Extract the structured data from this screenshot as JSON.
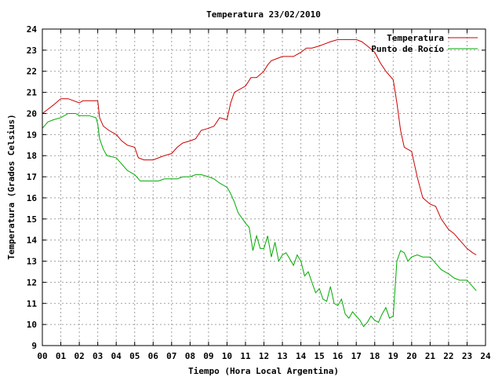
{
  "chart_data": {
    "type": "line",
    "title": "Temperatura 23/02/2010",
    "xlabel": "Tiempo (Hora Local Argentina)",
    "ylabel": "Temperatura (Grados Celsius)",
    "xlim": [
      0,
      24
    ],
    "ylim": [
      9,
      24
    ],
    "grid": true,
    "legend_position": "top-right",
    "x_ticks": [
      "00",
      "01",
      "02",
      "03",
      "04",
      "05",
      "06",
      "07",
      "08",
      "09",
      "10",
      "11",
      "12",
      "13",
      "14",
      "15",
      "16",
      "17",
      "18",
      "19",
      "20",
      "21",
      "22",
      "23",
      "24"
    ],
    "y_ticks": [
      "9",
      "10",
      "11",
      "12",
      "13",
      "14",
      "15",
      "16",
      "17",
      "18",
      "19",
      "20",
      "21",
      "22",
      "23",
      "24"
    ],
    "series": [
      {
        "name": "Temperatura",
        "color": "#cc0000",
        "x": [
          0,
          0.3,
          0.6,
          1,
          1.4,
          2,
          2.2,
          2.3,
          2.6,
          3,
          3.1,
          3.3,
          3.6,
          4,
          4.3,
          4.6,
          5,
          5.2,
          5.5,
          6,
          6.3,
          6.6,
          7,
          7.3,
          7.6,
          8,
          8.3,
          8.6,
          9,
          9.3,
          9.6,
          10,
          10.2,
          10.4,
          10.6,
          11,
          11.3,
          11.6,
          12,
          12.2,
          12.4,
          12.7,
          13,
          13.3,
          13.6,
          14,
          14.3,
          14.6,
          15,
          15.3,
          15.6,
          16,
          16.3,
          16.6,
          17,
          17.3,
          17.6,
          18,
          18.3,
          18.6,
          19,
          19.2,
          19.4,
          19.6,
          20,
          20.3,
          20.6,
          21,
          21.3,
          21.6,
          22,
          22.3,
          22.6,
          23,
          23.3,
          23.5
        ],
        "y": [
          20,
          20.2,
          20.4,
          20.7,
          20.7,
          20.5,
          20.6,
          20.6,
          20.6,
          20.6,
          19.8,
          19.4,
          19.2,
          19,
          18.7,
          18.5,
          18.4,
          17.9,
          17.8,
          17.8,
          17.9,
          18,
          18.1,
          18.4,
          18.6,
          18.7,
          18.8,
          19.2,
          19.3,
          19.4,
          19.8,
          19.7,
          20.5,
          21,
          21.1,
          21.3,
          21.7,
          21.7,
          22,
          22.3,
          22.5,
          22.6,
          22.7,
          22.7,
          22.7,
          22.9,
          23.1,
          23.1,
          23.2,
          23.3,
          23.4,
          23.5,
          23.5,
          23.5,
          23.5,
          23.4,
          23.2,
          22.9,
          22.4,
          22,
          21.6,
          20.5,
          19.2,
          18.4,
          18.2,
          17,
          16,
          15.7,
          15.6,
          15,
          14.5,
          14.3,
          14,
          13.6,
          13.4,
          13.3
        ]
      },
      {
        "name": "Punto de Rocío",
        "color": "#00aa00",
        "x": [
          0,
          0.3,
          0.6,
          1,
          1.4,
          1.8,
          2,
          2.2,
          2.5,
          2.9,
          3,
          3.1,
          3.3,
          3.5,
          4,
          4.3,
          4.6,
          5,
          5.3,
          5.6,
          6,
          6.3,
          6.6,
          7,
          7.3,
          7.6,
          8,
          8.3,
          8.6,
          9,
          9.3,
          9.6,
          10,
          10.2,
          10.4,
          10.6,
          11,
          11.2,
          11.4,
          11.6,
          11.8,
          12,
          12.2,
          12.4,
          12.6,
          12.8,
          13,
          13.2,
          13.4,
          13.6,
          13.8,
          14,
          14.2,
          14.4,
          14.6,
          14.8,
          15,
          15.2,
          15.4,
          15.6,
          15.8,
          16,
          16.2,
          16.4,
          16.6,
          16.8,
          17,
          17.2,
          17.4,
          17.6,
          17.8,
          18,
          18.2,
          18.4,
          18.6,
          18.8,
          19,
          19.2,
          19.4,
          19.6,
          19.8,
          20,
          20.3,
          20.6,
          21,
          21.3,
          21.6,
          22,
          22.3,
          22.6,
          23,
          23.3,
          23.5
        ],
        "y": [
          19.3,
          19.6,
          19.7,
          19.8,
          20,
          20,
          19.9,
          19.9,
          19.9,
          19.8,
          19.5,
          18.8,
          18.3,
          18,
          17.9,
          17.6,
          17.3,
          17.1,
          16.8,
          16.8,
          16.8,
          16.8,
          16.9,
          16.9,
          16.9,
          17,
          17,
          17.1,
          17.1,
          17,
          16.9,
          16.7,
          16.5,
          16.2,
          15.8,
          15.3,
          14.8,
          14.6,
          13.5,
          14.2,
          13.6,
          13.6,
          14.2,
          13.2,
          13.9,
          13,
          13.3,
          13.4,
          13.1,
          12.8,
          13.3,
          13,
          12.3,
          12.5,
          12,
          11.5,
          11.7,
          11.2,
          11.1,
          11.8,
          11,
          10.9,
          11.2,
          10.5,
          10.3,
          10.6,
          10.4,
          10.2,
          9.9,
          10.1,
          10.4,
          10.2,
          10.1,
          10.5,
          10.8,
          10.3,
          10.4,
          13,
          13.5,
          13.4,
          13,
          13.2,
          13.3,
          13.2,
          13.2,
          12.9,
          12.6,
          12.4,
          12.2,
          12.1,
          12.1,
          11.8,
          11.6
        ]
      }
    ]
  }
}
